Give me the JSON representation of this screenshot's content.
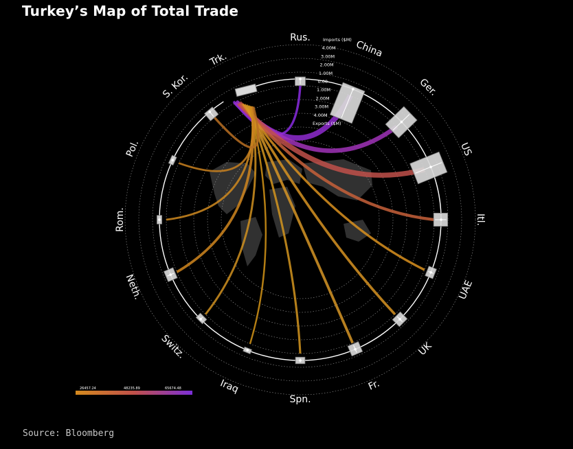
{
  "title": "Turkey’s Map of Total Trade",
  "source": "Source: Bloomberg",
  "chart_data": {
    "type": "chord",
    "title": "Turkey’s Map of Total Trade",
    "origin": "Trk.",
    "scale_labels": [
      "Imports ($M)",
      "4.00M",
      "3.00M",
      "2.00M",
      "1.00M",
      "0.00",
      "1.00M",
      "2.00M",
      "3.00M",
      "4.00M",
      "Exports ($M)"
    ],
    "partners": [
      {
        "name": "Rus.",
        "imports": 0.8,
        "exports": 0.2
      },
      {
        "name": "China",
        "imports": 3.9,
        "exports": 0.3
      },
      {
        "name": "Ger.",
        "imports": 1.6,
        "exports": 1.5
      },
      {
        "name": "US",
        "imports": 2.2,
        "exports": 1.6
      },
      {
        "name": "Itl.",
        "imports": 0.9,
        "exports": 0.8
      },
      {
        "name": "UAE",
        "imports": 0.5,
        "exports": 0.5
      },
      {
        "name": "UK",
        "imports": 0.6,
        "exports": 0.6
      },
      {
        "name": "Fr.",
        "imports": 0.7,
        "exports": 0.6
      },
      {
        "name": "Spn.",
        "imports": 0.4,
        "exports": 0.4
      },
      {
        "name": "Iraq",
        "imports": 0.05,
        "exports": 0.3
      },
      {
        "name": "Switz.",
        "imports": 0.5,
        "exports": 0.2
      },
      {
        "name": "Neth.",
        "imports": 0.6,
        "exports": 0.6
      },
      {
        "name": "Rom.",
        "imports": 0.3,
        "exports": 0.3
      },
      {
        "name": "Pol.",
        "imports": 0.3,
        "exports": 0.3
      },
      {
        "name": "S. Kor.",
        "imports": 0.9,
        "exports": 0.1
      }
    ],
    "legend": {
      "labels": [
        "26457.24",
        "48235.89",
        "65674.48"
      ],
      "colors": [
        "#d48a1e",
        "#c0504a",
        "#7b2fd8"
      ]
    }
  }
}
